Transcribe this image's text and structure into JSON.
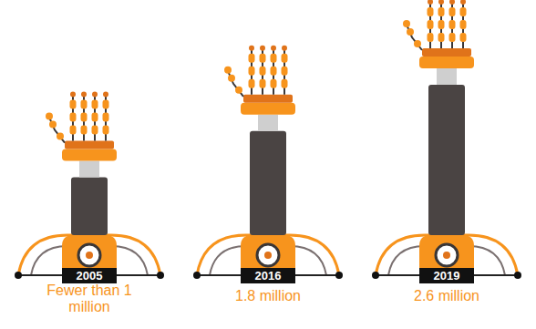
{
  "chart_data": {
    "type": "bar",
    "categories": [
      "2005",
      "2016",
      "2019"
    ],
    "values": [
      1,
      1.8,
      2.6
    ],
    "value_labels": [
      "Fewer than 1 million",
      "1.8 million",
      "2.6 million"
    ],
    "color": "#4a4443",
    "data_labels": true,
    "tick_labels": false
  }
}
